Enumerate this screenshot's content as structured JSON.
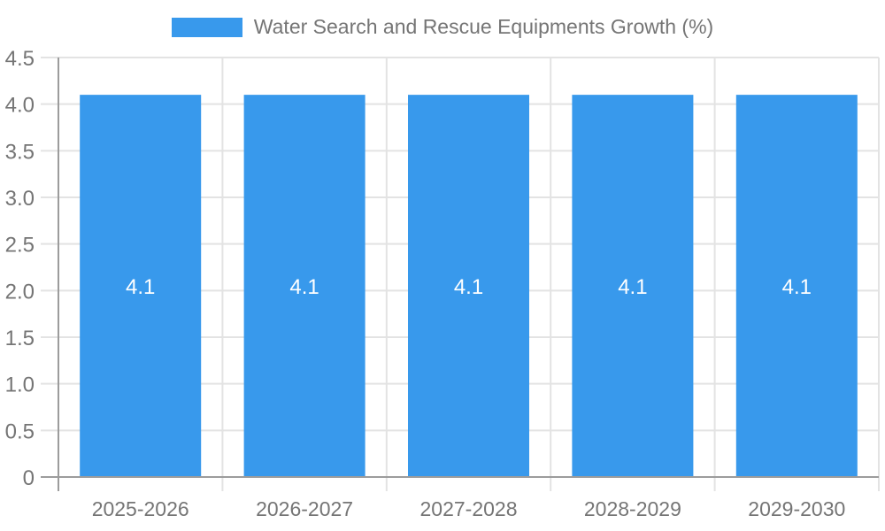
{
  "chart_data": {
    "type": "bar",
    "title": "",
    "legend": {
      "position": "top",
      "entries": [
        "Water Search and Rescue Equipments Growth (%)"
      ]
    },
    "categories": [
      "2025-2026",
      "2026-2027",
      "2027-2028",
      "2028-2029",
      "2029-2030"
    ],
    "series": [
      {
        "name": "Water Search and Rescue Equipments Growth (%)",
        "values": [
          4.1,
          4.1,
          4.1,
          4.1,
          4.1
        ],
        "bar_labels": [
          "4.1",
          "4.1",
          "4.1",
          "4.1",
          "4.1"
        ]
      }
    ],
    "xlabel": "",
    "ylabel": "",
    "ylim": [
      0,
      4.5
    ],
    "yticks": [
      0,
      0.5,
      1,
      1.5,
      2,
      2.5,
      3,
      3.5,
      4,
      4.5
    ],
    "ytick_labels": [
      "0",
      "0.5",
      "1.0",
      "1.5",
      "2.0",
      "2.5",
      "3.0",
      "3.5",
      "4.0",
      "4.5"
    ],
    "grid": true,
    "colors": {
      "bar": "#3899ec",
      "grid": "#e3e3e3",
      "axis": "#9c9c9c",
      "tick_text": "#757575",
      "bar_label": "#ffffff",
      "background": "#ffffff"
    }
  }
}
